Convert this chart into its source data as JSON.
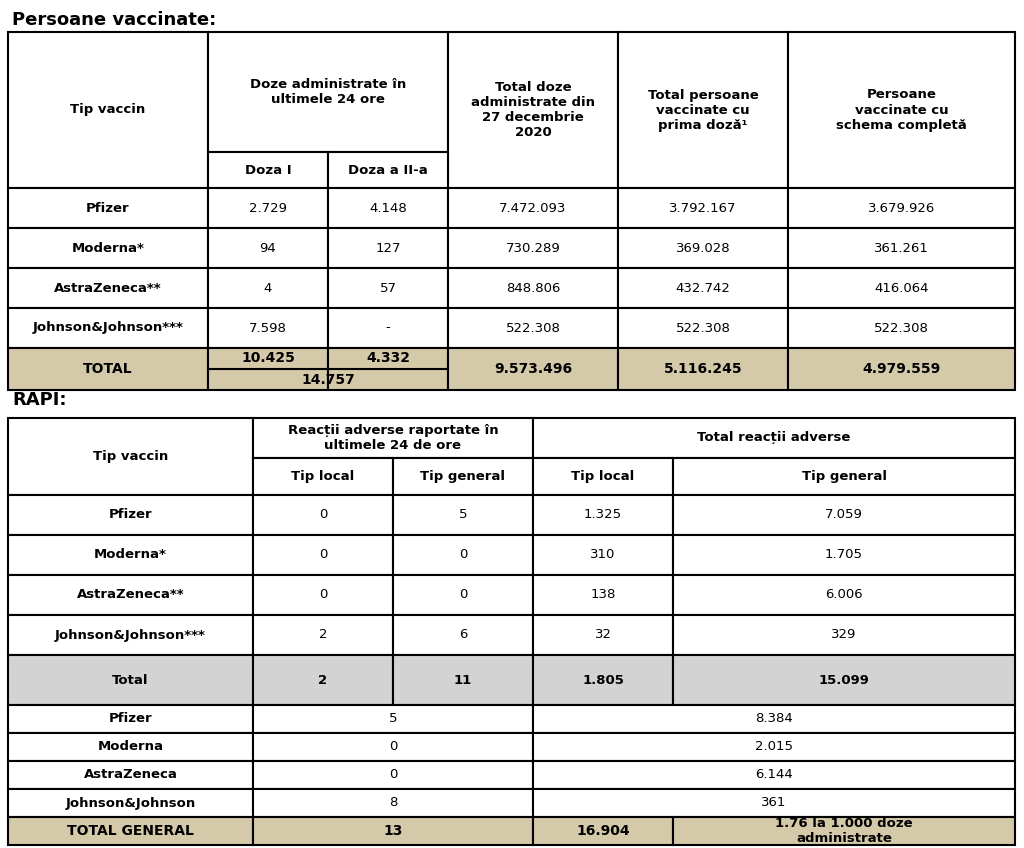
{
  "title1": "Persoane vaccinate:",
  "title2": "RAPI:",
  "bg_color": "#ffffff",
  "border_color": "#000000",
  "total_bg": "#d4c9a8",
  "subtotal_bg": "#d3d3d3",
  "white": "#ffffff",
  "table1": {
    "rows": [
      [
        "Pfizer",
        "2.729",
        "4.148",
        "7.472.093",
        "3.792.167",
        "3.679.926"
      ],
      [
        "Moderna*",
        "94",
        "127",
        "730.289",
        "369.028",
        "361.261"
      ],
      [
        "AstraZeneca**",
        "4",
        "57",
        "848.806",
        "432.742",
        "416.064"
      ],
      [
        "Johnson&Johnson***",
        "7.598",
        "-",
        "522.308",
        "522.308",
        "522.308"
      ]
    ],
    "total": {
      "label": "TOTAL",
      "doza1": "10.425",
      "doza2": "4.332",
      "sub14": "14.757",
      "c3": "9.573.496",
      "c4": "5.116.245",
      "c5": "4.979.559"
    }
  },
  "table2": {
    "rows": [
      [
        "Pfizer",
        "0",
        "5",
        "1.325",
        "7.059"
      ],
      [
        "Moderna*",
        "0",
        "0",
        "310",
        "1.705"
      ],
      [
        "AstraZeneca**",
        "0",
        "0",
        "138",
        "6.006"
      ],
      [
        "Johnson&Johnson***",
        "2",
        "6",
        "32",
        "329"
      ]
    ],
    "subtotal": {
      "label": "Total",
      "tl": "2",
      "tg": "11",
      "tlt": "1.805",
      "tgt": "15.099"
    },
    "rows2": [
      [
        "Pfizer",
        "5",
        "8.384"
      ],
      [
        "Moderna",
        "0",
        "2.015"
      ],
      [
        "AstraZeneca",
        "0",
        "6.144"
      ],
      [
        "Johnson&Johnson",
        "8",
        "361"
      ]
    ],
    "total_general": {
      "label": "TOTAL GENERAL",
      "v24": "13",
      "vtot": "16.904",
      "vrate": "1.76 la 1.000 doze\nadministrate"
    }
  }
}
